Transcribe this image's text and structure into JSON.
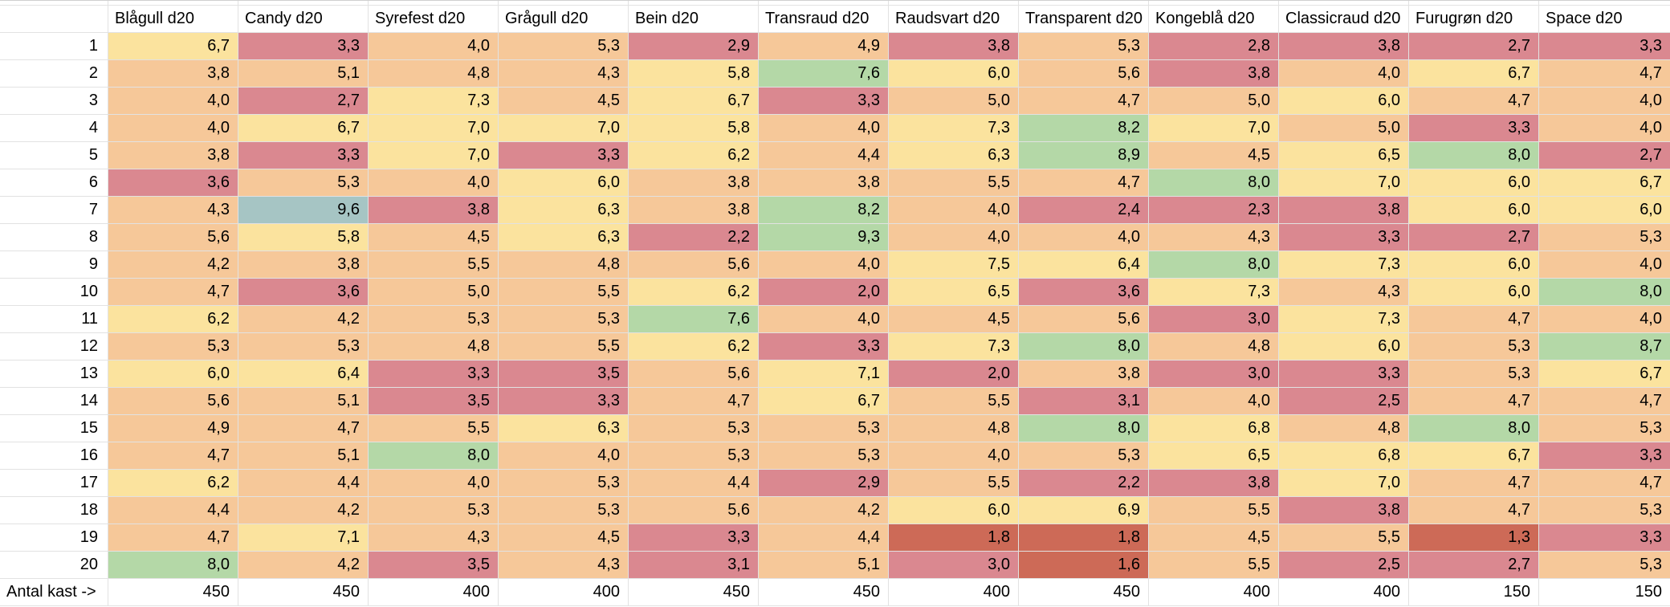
{
  "palette": {
    "Y": "#fbe39e",
    "R": "#da8890",
    "O": "#f6c899",
    "G": "#b4d8a7",
    "B": "#a6c5c4",
    "D": "#cd6a57",
    "W": "#ffffff",
    "gridline": "#e2e2e2"
  },
  "table": {
    "corner_label": "",
    "columns": [
      "Blågull d20",
      "Candy d20",
      "Syrefest d20",
      "Grågull d20",
      "Bein d20",
      "Transraud d20",
      "Raudsvart d20",
      "Transparent d20",
      "Kongeblå d20",
      "Classicraud d20",
      "Furugrøn d20",
      "Space d20"
    ],
    "rows": [
      {
        "label": "1",
        "values": [
          "6,7",
          "3,3",
          "4,0",
          "5,3",
          "2,9",
          "4,9",
          "3,8",
          "5,3",
          "2,8",
          "3,8",
          "2,7",
          "3,3"
        ],
        "colors": [
          "Y",
          "R",
          "O",
          "O",
          "R",
          "O",
          "R",
          "O",
          "R",
          "R",
          "R",
          "R"
        ]
      },
      {
        "label": "2",
        "values": [
          "3,8",
          "5,1",
          "4,8",
          "4,3",
          "5,8",
          "7,6",
          "6,0",
          "5,6",
          "3,8",
          "4,0",
          "6,7",
          "4,7"
        ],
        "colors": [
          "O",
          "O",
          "O",
          "O",
          "Y",
          "G",
          "Y",
          "O",
          "R",
          "O",
          "Y",
          "O"
        ]
      },
      {
        "label": "3",
        "values": [
          "4,0",
          "2,7",
          "7,3",
          "4,5",
          "6,7",
          "3,3",
          "5,0",
          "4,7",
          "5,0",
          "6,0",
          "4,7",
          "4,0"
        ],
        "colors": [
          "O",
          "R",
          "Y",
          "O",
          "Y",
          "R",
          "O",
          "O",
          "O",
          "Y",
          "O",
          "O"
        ]
      },
      {
        "label": "4",
        "values": [
          "4,0",
          "6,7",
          "7,0",
          "7,0",
          "5,8",
          "4,0",
          "7,3",
          "8,2",
          "7,0",
          "5,0",
          "3,3",
          "4,0"
        ],
        "colors": [
          "O",
          "Y",
          "Y",
          "Y",
          "Y",
          "O",
          "Y",
          "G",
          "Y",
          "O",
          "R",
          "O"
        ]
      },
      {
        "label": "5",
        "values": [
          "3,8",
          "3,3",
          "7,0",
          "3,3",
          "6,2",
          "4,4",
          "6,3",
          "8,9",
          "4,5",
          "6,5",
          "8,0",
          "2,7"
        ],
        "colors": [
          "O",
          "R",
          "Y",
          "R",
          "Y",
          "O",
          "Y",
          "G",
          "O",
          "Y",
          "G",
          "R"
        ]
      },
      {
        "label": "6",
        "values": [
          "3,6",
          "5,3",
          "4,0",
          "6,0",
          "3,8",
          "3,8",
          "5,5",
          "4,7",
          "8,0",
          "7,0",
          "6,0",
          "6,7"
        ],
        "colors": [
          "R",
          "O",
          "O",
          "Y",
          "O",
          "O",
          "O",
          "O",
          "G",
          "Y",
          "Y",
          "Y"
        ]
      },
      {
        "label": "7",
        "values": [
          "4,3",
          "9,6",
          "3,8",
          "6,3",
          "3,8",
          "8,2",
          "4,0",
          "2,4",
          "2,3",
          "3,8",
          "6,0",
          "6,0"
        ],
        "colors": [
          "O",
          "B",
          "R",
          "Y",
          "O",
          "G",
          "O",
          "R",
          "R",
          "R",
          "Y",
          "Y"
        ]
      },
      {
        "label": "8",
        "values": [
          "5,6",
          "5,8",
          "4,5",
          "6,3",
          "2,2",
          "9,3",
          "4,0",
          "4,0",
          "4,3",
          "3,3",
          "2,7",
          "5,3"
        ],
        "colors": [
          "O",
          "Y",
          "O",
          "Y",
          "R",
          "G",
          "O",
          "O",
          "O",
          "R",
          "R",
          "O"
        ]
      },
      {
        "label": "9",
        "values": [
          "4,2",
          "3,8",
          "5,5",
          "4,8",
          "5,6",
          "4,0",
          "7,5",
          "6,4",
          "8,0",
          "7,3",
          "6,0",
          "4,0"
        ],
        "colors": [
          "O",
          "O",
          "O",
          "O",
          "O",
          "O",
          "Y",
          "Y",
          "G",
          "Y",
          "Y",
          "O"
        ]
      },
      {
        "label": "10",
        "values": [
          "4,7",
          "3,6",
          "5,0",
          "5,5",
          "6,2",
          "2,0",
          "6,5",
          "3,6",
          "7,3",
          "4,3",
          "6,0",
          "8,0"
        ],
        "colors": [
          "O",
          "R",
          "O",
          "O",
          "Y",
          "R",
          "Y",
          "R",
          "Y",
          "O",
          "Y",
          "G"
        ]
      },
      {
        "label": "11",
        "values": [
          "6,2",
          "4,2",
          "5,3",
          "5,3",
          "7,6",
          "4,0",
          "4,5",
          "5,6",
          "3,0",
          "7,3",
          "4,7",
          "4,0"
        ],
        "colors": [
          "Y",
          "O",
          "O",
          "O",
          "G",
          "O",
          "O",
          "O",
          "R",
          "Y",
          "O",
          "O"
        ]
      },
      {
        "label": "12",
        "values": [
          "5,3",
          "5,3",
          "4,8",
          "5,5",
          "6,2",
          "3,3",
          "7,3",
          "8,0",
          "4,8",
          "6,0",
          "5,3",
          "8,7"
        ],
        "colors": [
          "O",
          "O",
          "O",
          "O",
          "Y",
          "R",
          "Y",
          "G",
          "O",
          "Y",
          "O",
          "G"
        ]
      },
      {
        "label": "13",
        "values": [
          "6,0",
          "6,4",
          "3,3",
          "3,5",
          "5,6",
          "7,1",
          "2,0",
          "3,8",
          "3,0",
          "3,3",
          "5,3",
          "6,7"
        ],
        "colors": [
          "Y",
          "Y",
          "R",
          "R",
          "O",
          "Y",
          "R",
          "O",
          "R",
          "R",
          "O",
          "Y"
        ]
      },
      {
        "label": "14",
        "values": [
          "5,6",
          "5,1",
          "3,5",
          "3,3",
          "4,7",
          "6,7",
          "5,5",
          "3,1",
          "4,0",
          "2,5",
          "4,7",
          "4,7"
        ],
        "colors": [
          "O",
          "O",
          "R",
          "R",
          "O",
          "Y",
          "O",
          "R",
          "O",
          "R",
          "O",
          "O"
        ]
      },
      {
        "label": "15",
        "values": [
          "4,9",
          "4,7",
          "5,5",
          "6,3",
          "5,3",
          "5,3",
          "4,8",
          "8,0",
          "6,8",
          "4,8",
          "8,0",
          "5,3"
        ],
        "colors": [
          "O",
          "O",
          "O",
          "Y",
          "O",
          "O",
          "O",
          "G",
          "Y",
          "O",
          "G",
          "O"
        ]
      },
      {
        "label": "16",
        "values": [
          "4,7",
          "5,1",
          "8,0",
          "4,0",
          "5,3",
          "5,3",
          "4,0",
          "5,3",
          "6,5",
          "6,8",
          "6,7",
          "3,3"
        ],
        "colors": [
          "O",
          "O",
          "G",
          "O",
          "O",
          "O",
          "O",
          "O",
          "Y",
          "Y",
          "Y",
          "R"
        ]
      },
      {
        "label": "17",
        "values": [
          "6,2",
          "4,4",
          "4,0",
          "5,3",
          "4,4",
          "2,9",
          "5,5",
          "2,2",
          "3,8",
          "7,0",
          "4,7",
          "4,7"
        ],
        "colors": [
          "Y",
          "O",
          "O",
          "O",
          "O",
          "R",
          "O",
          "R",
          "R",
          "Y",
          "O",
          "O"
        ]
      },
      {
        "label": "18",
        "values": [
          "4,4",
          "4,2",
          "5,3",
          "5,3",
          "5,6",
          "4,2",
          "6,0",
          "6,9",
          "5,5",
          "3,8",
          "4,7",
          "5,3"
        ],
        "colors": [
          "O",
          "O",
          "O",
          "O",
          "O",
          "O",
          "Y",
          "Y",
          "O",
          "R",
          "O",
          "O"
        ]
      },
      {
        "label": "19",
        "values": [
          "4,7",
          "7,1",
          "4,3",
          "4,5",
          "3,3",
          "4,4",
          "1,8",
          "1,8",
          "4,5",
          "5,5",
          "1,3",
          "3,3"
        ],
        "colors": [
          "O",
          "Y",
          "O",
          "O",
          "R",
          "O",
          "D",
          "D",
          "O",
          "O",
          "D",
          "R"
        ]
      },
      {
        "label": "20",
        "values": [
          "8,0",
          "4,2",
          "3,5",
          "4,3",
          "3,1",
          "5,1",
          "3,0",
          "1,6",
          "5,5",
          "2,5",
          "2,7",
          "5,3"
        ],
        "colors": [
          "G",
          "O",
          "R",
          "O",
          "R",
          "O",
          "R",
          "D",
          "O",
          "R",
          "R",
          "O"
        ]
      }
    ],
    "footer": {
      "label": "Antal kast ->",
      "values": [
        "450",
        "450",
        "400",
        "400",
        "450",
        "450",
        "400",
        "450",
        "400",
        "400",
        "150",
        "150"
      ]
    }
  }
}
